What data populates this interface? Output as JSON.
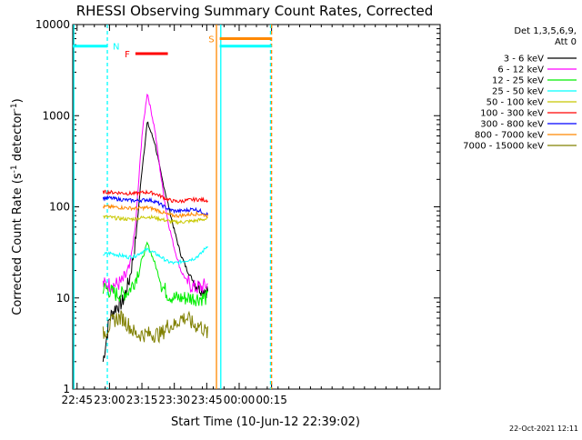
{
  "chart_data": {
    "type": "line",
    "title": "RHESSI Observing Summary Count Rates, Corrected",
    "xlabel": "Start Time (10-Jun-12 22:39:02)",
    "ylabel_main": "Corrected Count Rate (s",
    "ylabel_sup1": "-1",
    "ylabel_mid": " detector",
    "ylabel_sup2": "-1",
    "ylabel_end": ")",
    "y_scale": "log",
    "ylim": [
      1,
      10000
    ],
    "xlim_minutes": [
      -50,
      120
    ],
    "x_ticks": [
      {
        "minutes": -48,
        "label": "22:45"
      },
      {
        "minutes": -33,
        "label": "23:00"
      },
      {
        "minutes": -18,
        "label": "23:15"
      },
      {
        "minutes": -3,
        "label": "23:30"
      },
      {
        "minutes": 12,
        "label": "23:45"
      },
      {
        "minutes": 27,
        "label": "00:00"
      },
      {
        "minutes": 42,
        "label": "00:15"
      }
    ],
    "y_ticks": [
      {
        "value": 1,
        "label": "1"
      },
      {
        "value": 10,
        "label": "10"
      },
      {
        "value": 100,
        "label": "100"
      },
      {
        "value": 1000,
        "label": "1000"
      },
      {
        "value": 10000,
        "label": "10000"
      }
    ],
    "legend_header": [
      "Det 1,3,5,6,9,",
      "Att 0"
    ],
    "legend_position": "top-right",
    "series": [
      {
        "name": "3 - 6 keV",
        "color": "#000000",
        "values": [
          2,
          6,
          8,
          9,
          15,
          40,
          250,
          850,
          500,
          220,
          110,
          55,
          30,
          20,
          15,
          13,
          12
        ]
      },
      {
        "name": "6 - 12 keV",
        "color": "#ff00ff",
        "values": [
          14,
          14,
          14,
          15,
          20,
          60,
          600,
          1800,
          700,
          200,
          70,
          35,
          20,
          15,
          13,
          13,
          14
        ]
      },
      {
        "name": "12 - 25 keV",
        "color": "#00ee00",
        "values": [
          13,
          12,
          11,
          11,
          12,
          16,
          26,
          40,
          24,
          14,
          11,
          10,
          10,
          10,
          10,
          10,
          10
        ]
      },
      {
        "name": "25 - 50 keV",
        "color": "#00ffff",
        "values": [
          30,
          31,
          30,
          29,
          28,
          29,
          32,
          34,
          31,
          28,
          25,
          24,
          25,
          26,
          27,
          30,
          38
        ]
      },
      {
        "name": "50 - 100 keV",
        "color": "#c8c800",
        "values": [
          78,
          77,
          75,
          74,
          73,
          74,
          76,
          78,
          76,
          73,
          70,
          68,
          68,
          69,
          70,
          72,
          74
        ]
      },
      {
        "name": "100 - 300 keV",
        "color": "#ff0000",
        "values": [
          145,
          145,
          143,
          142,
          140,
          140,
          143,
          145,
          140,
          130,
          120,
          115,
          115,
          118,
          120,
          120,
          118
        ]
      },
      {
        "name": "300 - 800 keV",
        "color": "#0000ff",
        "values": [
          125,
          125,
          122,
          120,
          118,
          117,
          118,
          120,
          115,
          105,
          95,
          90,
          90,
          92,
          95,
          90,
          82
        ]
      },
      {
        "name": "800 - 7000 keV",
        "color": "#ff8800",
        "values": [
          100,
          100,
          99,
          98,
          97,
          96,
          97,
          98,
          94,
          88,
          82,
          80,
          80,
          82,
          84,
          83,
          80
        ]
      },
      {
        "name": "7000 - 15000 keV",
        "color": "#808000",
        "values": [
          4,
          5,
          6,
          6,
          5,
          4,
          4,
          4,
          4,
          4,
          5,
          5,
          6,
          6,
          5,
          5,
          4
        ]
      }
    ],
    "series_x_minutes": [
      -36,
      -33,
      -30,
      -27,
      -24,
      -21,
      -18,
      -15.5,
      -12,
      -9,
      -6,
      -3,
      0,
      3,
      6,
      9,
      12.5
    ],
    "markers": [
      {
        "label": "N",
        "color": "#00ffff",
        "start_minutes": -50,
        "end_minutes": -34,
        "level": 5800
      },
      {
        "label": "F",
        "color": "#ff0000",
        "start_minutes": -21,
        "end_minutes": -6,
        "level": 4800
      },
      {
        "label": "S",
        "color": "#ff8800",
        "start_minutes": 18,
        "end_minutes": 42,
        "level": 7000
      },
      {
        "label": "",
        "color": "#00ffff",
        "start_minutes": 18,
        "end_minutes": 42,
        "level": 5800
      }
    ],
    "vertical_lines": [
      {
        "minutes": -49.5,
        "color": "#00ffff",
        "style": "solid"
      },
      {
        "minutes": -34,
        "color": "#00ffff",
        "style": "dashed"
      },
      {
        "minutes": 16.5,
        "color": "#ff8800",
        "style": "solid"
      },
      {
        "minutes": 18.5,
        "color": "#00ffff",
        "style": "solid"
      },
      {
        "minutes": 41.5,
        "color": "#00ffff",
        "style": "dashed"
      },
      {
        "minutes": 42,
        "color": "#ff8800",
        "style": "dashed"
      }
    ],
    "footer": "22-Oct-2021 12:11",
    "grid": false
  }
}
